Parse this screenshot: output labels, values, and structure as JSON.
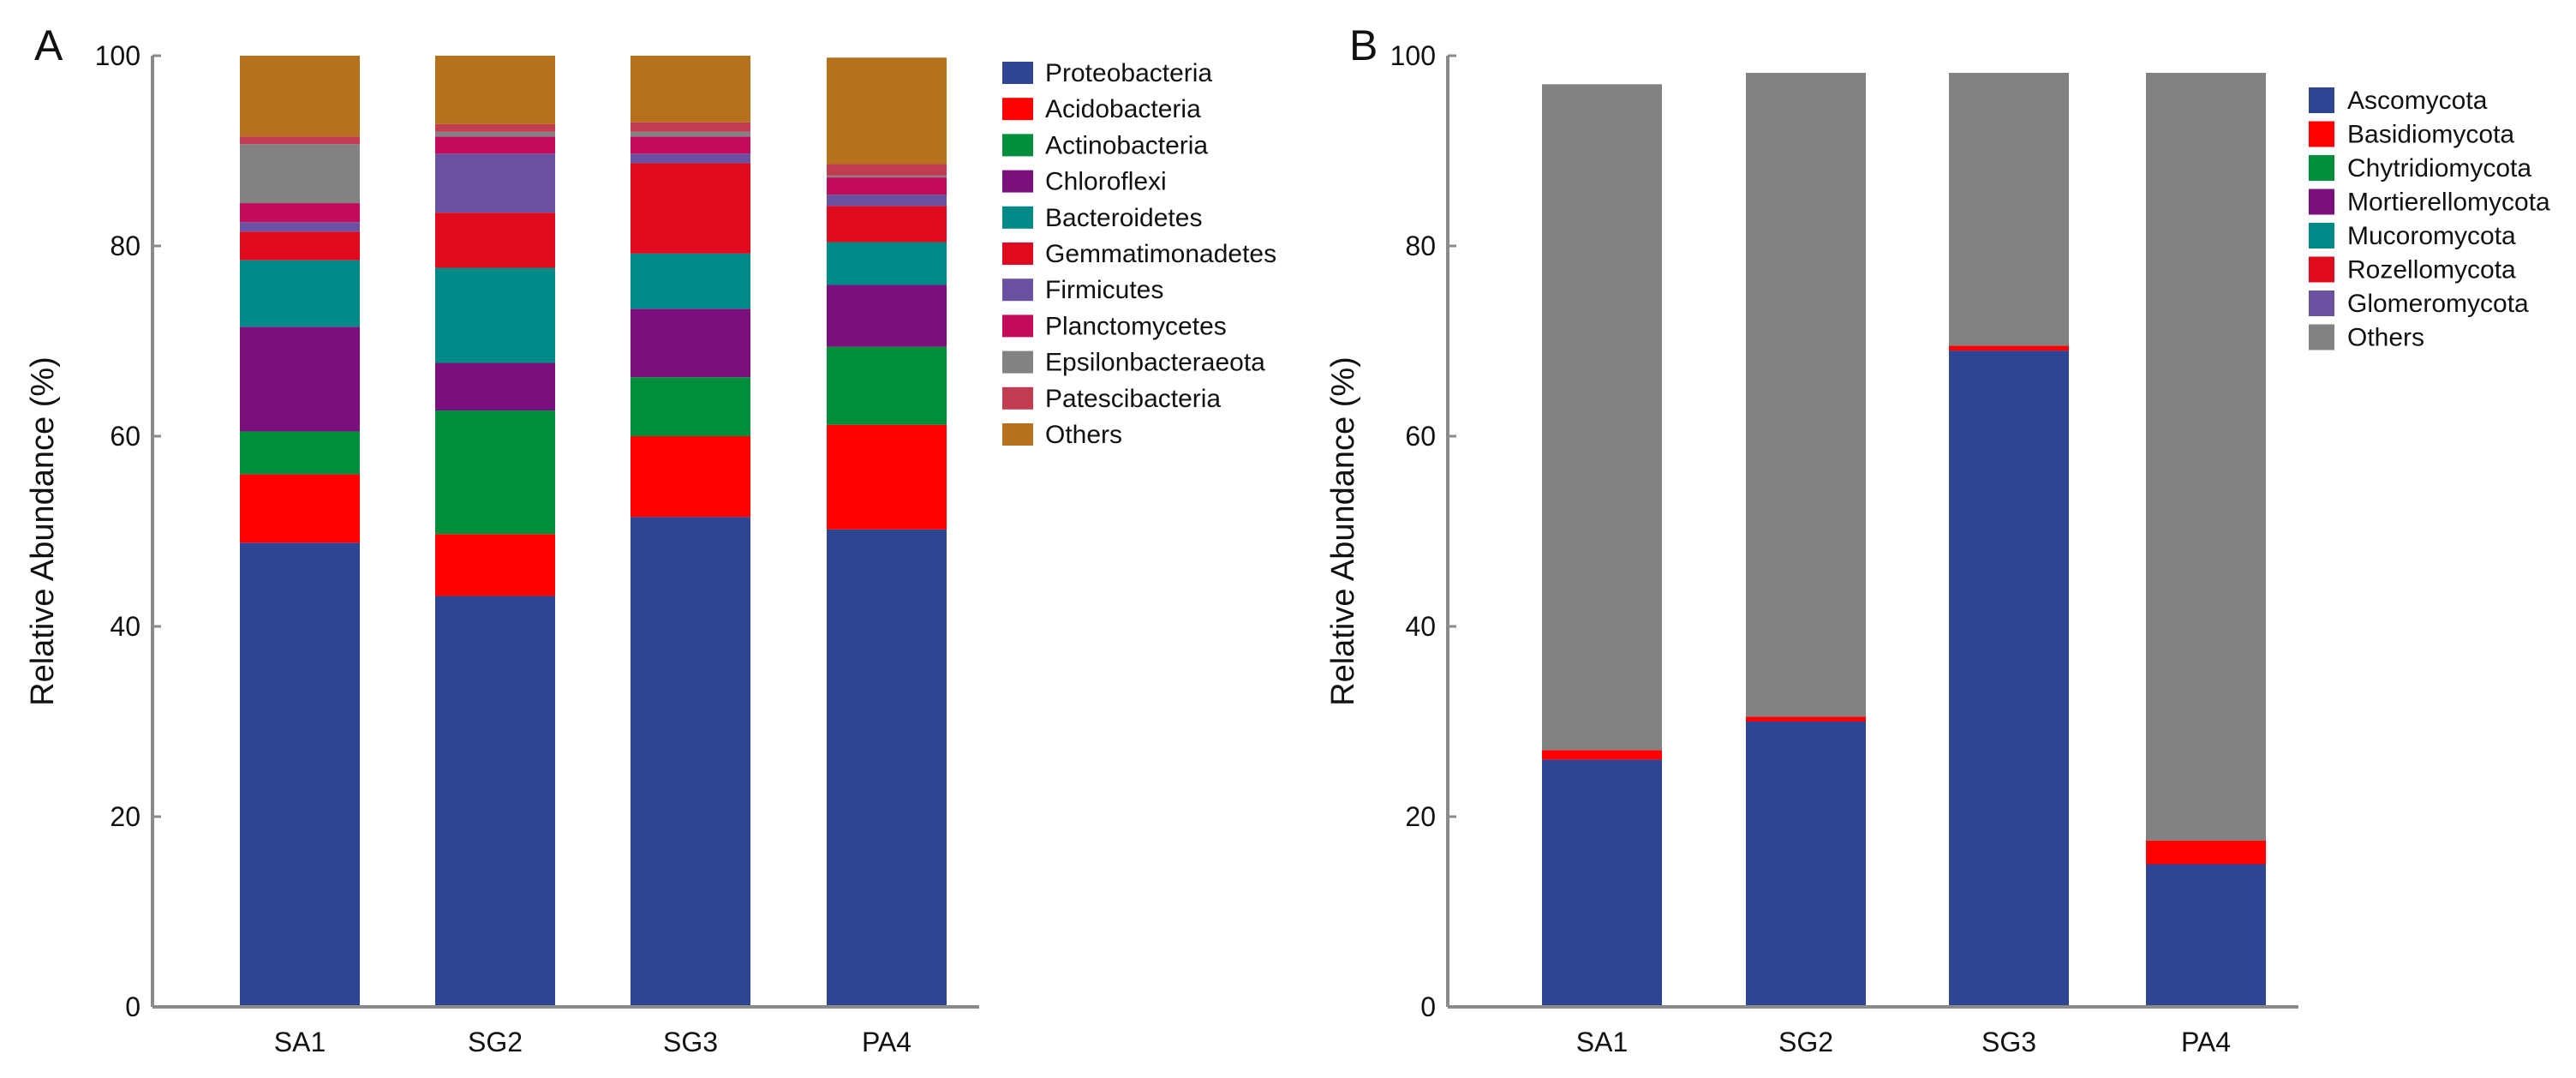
{
  "chart_data": [
    {
      "type": "bar",
      "stacked": true,
      "panel_label": "A",
      "title": "",
      "xlabel": "",
      "ylabel": "Relative Abundance (%)",
      "ylim": [
        0,
        100
      ],
      "yticks": [
        "0",
        "20",
        "40",
        "60",
        "80",
        "100"
      ],
      "categories": [
        "SA1",
        "SG2",
        "SG3",
        "PA4"
      ],
      "legend_position": "right",
      "series": [
        {
          "name": "Proteobacteria",
          "color": "#2E4593",
          "values": [
            48.8,
            43.2,
            51.5,
            50.2
          ]
        },
        {
          "name": "Acidobacteria",
          "color": "#FE0000",
          "values": [
            7.2,
            6.5,
            8.5,
            11.0
          ]
        },
        {
          "name": "Actinobacteria",
          "color": "#008E3A",
          "values": [
            4.5,
            13.0,
            6.2,
            8.2
          ]
        },
        {
          "name": "Chloroflexi",
          "color": "#7B0F7E",
          "values": [
            11.0,
            5.0,
            7.2,
            6.5
          ]
        },
        {
          "name": "Bacteroidetes",
          "color": "#008A87",
          "values": [
            7.0,
            10.0,
            5.8,
            4.5
          ]
        },
        {
          "name": "Gemmatimonadetes",
          "color": "#E00A1E",
          "values": [
            3.0,
            5.8,
            9.5,
            3.8
          ]
        },
        {
          "name": "Firmicutes",
          "color": "#6B51A1",
          "values": [
            1.0,
            6.2,
            1.0,
            1.2
          ]
        },
        {
          "name": "Planctomycetes",
          "color": "#C40A5A",
          "values": [
            2.0,
            1.8,
            1.8,
            1.8
          ]
        },
        {
          "name": "Epsilonbacteraeota",
          "color": "#828282",
          "values": [
            6.2,
            0.5,
            0.5,
            0.2
          ]
        },
        {
          "name": "Patescibacteria",
          "color": "#C23B51",
          "values": [
            0.8,
            0.8,
            1.0,
            1.2
          ]
        },
        {
          "name": "Others",
          "color": "#B5711B",
          "values": [
            8.5,
            7.2,
            7.0,
            11.2
          ]
        }
      ]
    },
    {
      "type": "bar",
      "stacked": true,
      "panel_label": "B",
      "title": "",
      "xlabel": "",
      "ylabel": "Relative Abundance (%)",
      "ylim": [
        0,
        100
      ],
      "yticks": [
        "0",
        "20",
        "40",
        "60",
        "80",
        "100"
      ],
      "categories": [
        "SA1",
        "SG2",
        "SG3",
        "PA4"
      ],
      "legend_position": "right",
      "series": [
        {
          "name": "Ascomycota",
          "color": "#2E4593",
          "values": [
            26.0,
            30.0,
            69.0,
            15.0
          ]
        },
        {
          "name": "Basidiomycota",
          "color": "#FE0000",
          "values": [
            1.0,
            0.5,
            0.5,
            2.5
          ]
        },
        {
          "name": "Chytridiomycota",
          "color": "#008E3A",
          "values": [
            0,
            0,
            0,
            0
          ]
        },
        {
          "name": "Mortierellomycota",
          "color": "#7B0F7E",
          "values": [
            0,
            0,
            0,
            0
          ]
        },
        {
          "name": "Mucoromycota",
          "color": "#008A87",
          "values": [
            0,
            0,
            0,
            0
          ]
        },
        {
          "name": "Rozellomycota",
          "color": "#E00A1E",
          "values": [
            0,
            0,
            0,
            0
          ]
        },
        {
          "name": "Glomeromycota",
          "color": "#6B51A1",
          "values": [
            0,
            0,
            0,
            0
          ]
        },
        {
          "name": "Others",
          "color": "#828282",
          "values": [
            70.0,
            67.7,
            28.7,
            80.7
          ]
        }
      ]
    }
  ]
}
